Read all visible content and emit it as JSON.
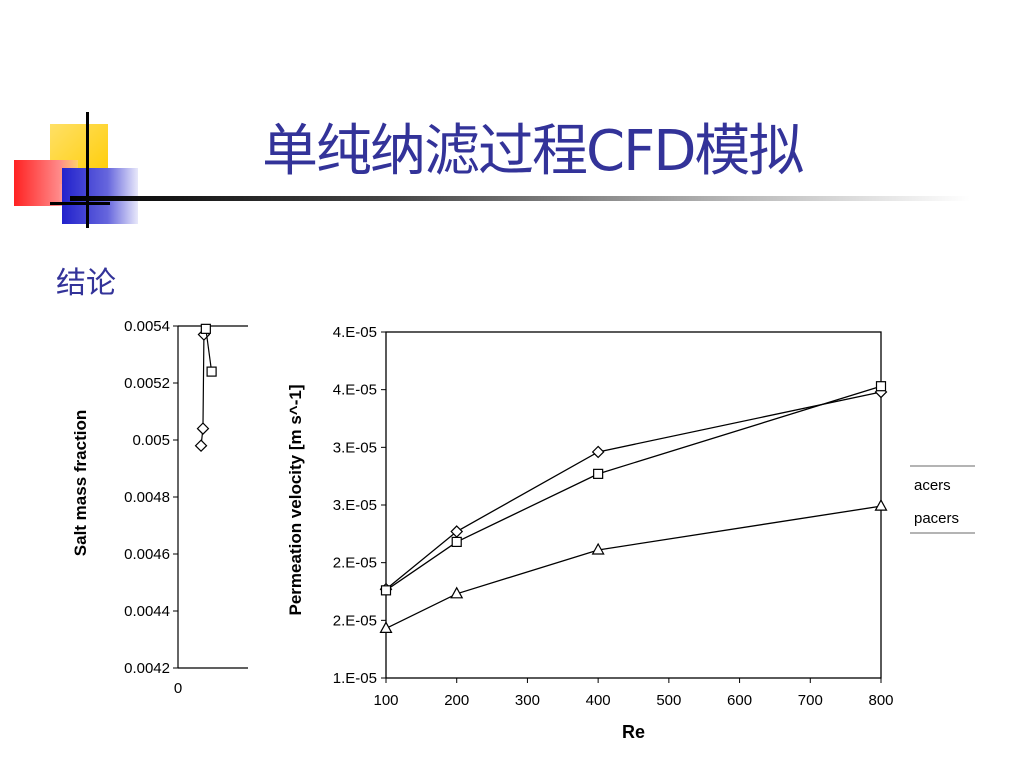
{
  "slide": {
    "title": "单纯纳滤过程CFD模拟",
    "section_label": "结论",
    "colors": {
      "title": "#333399",
      "logo_yellow": "#FFCC00",
      "logo_red": "#FF3333",
      "logo_blue": "#3333CC"
    }
  },
  "chart_data": [
    {
      "type": "line",
      "partially_hidden": true,
      "ylabel": "Salt mass fraction",
      "xlabel": "",
      "y_ticks": [
        "0.0054",
        "0.0052",
        "0.005",
        "0.0048",
        "0.0046",
        "0.0044",
        "0.0042"
      ],
      "x_ticks": [
        "0"
      ],
      "legend_fragments": [
        "acers",
        "pacers"
      ],
      "series": [
        {
          "marker": "diamond",
          "points": [
            [
              0.0054,
              0.00537
            ],
            [
              0.0052,
              0.00504
            ],
            [
              0.0048,
              0.00498
            ]
          ]
        },
        {
          "marker": "square",
          "points": [
            [
              0.0058,
              0.00539
            ],
            [
              0.007,
              0.00524
            ]
          ]
        }
      ]
    },
    {
      "type": "line",
      "xlabel": "Re",
      "ylabel": "Permeation velocity [m s^-1]",
      "x_ticks": [
        "100",
        "200",
        "300",
        "400",
        "500",
        "600",
        "700",
        "800"
      ],
      "y_ticks": [
        "4.E-05",
        "4.E-05",
        "3.E-05",
        "3.E-05",
        "2.E-05",
        "2.E-05",
        "1.E-05"
      ],
      "xlim": [
        100,
        800
      ],
      "ylim": [
        1e-05,
        4e-05
      ],
      "series": [
        {
          "marker": "diamond",
          "x": [
            100,
            200,
            400,
            800
          ],
          "y": [
            1.77e-05,
            2.27e-05,
            2.96e-05,
            3.48e-05
          ]
        },
        {
          "marker": "square",
          "x": [
            100,
            200,
            400,
            800
          ],
          "y": [
            1.76e-05,
            2.18e-05,
            2.77e-05,
            3.53e-05
          ]
        },
        {
          "marker": "triangle",
          "x": [
            100,
            200,
            400,
            800
          ],
          "y": [
            1.43e-05,
            1.73e-05,
            2.11e-05,
            2.49e-05
          ]
        }
      ]
    }
  ]
}
